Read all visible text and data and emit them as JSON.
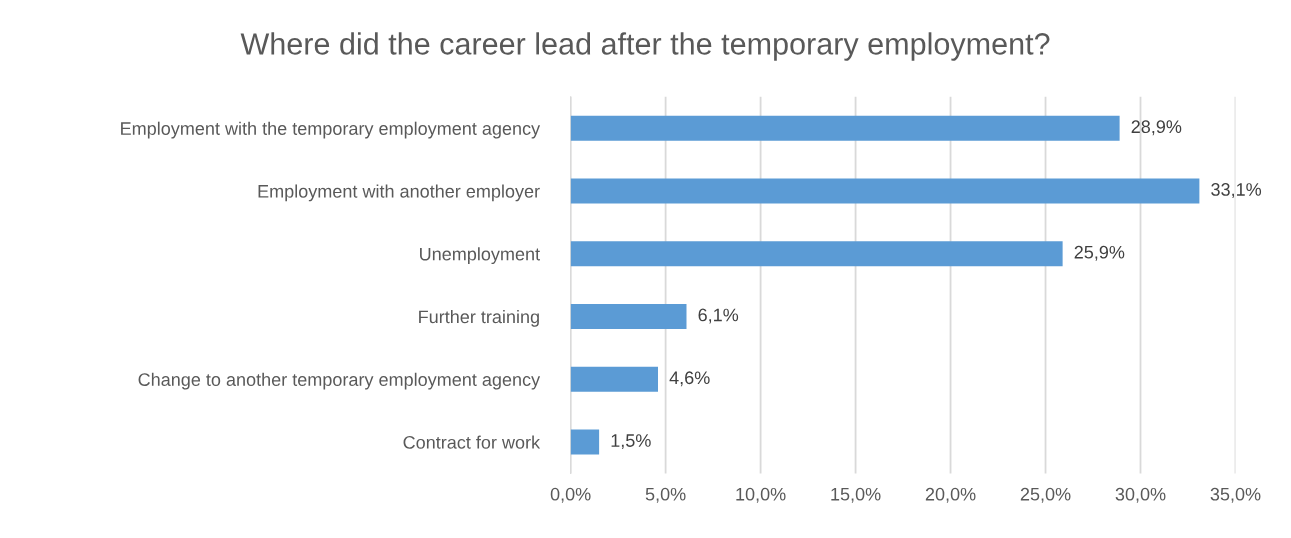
{
  "chart_data": {
    "type": "bar",
    "orientation": "horizontal",
    "title": "Where did the career lead after the temporary employment?",
    "categories": [
      "Employment with the temporary employment agency",
      "Employment with another employer",
      "Unemployment",
      "Further training",
      "Change to another temporary employment agency",
      "Contract for work"
    ],
    "values": [
      28.9,
      33.1,
      25.9,
      6.1,
      4.6,
      1.5
    ],
    "value_labels": [
      "28,9%",
      "33,1%",
      "25,9%",
      "6,1%",
      "4,6%",
      "1,5%"
    ],
    "color": "#5b9bd5",
    "xlim": [
      0,
      35
    ],
    "xticks": [
      {
        "value": 0,
        "label": "0,0%"
      },
      {
        "value": 5,
        "label": "5,0%"
      },
      {
        "value": 10,
        "label": "10,0%"
      },
      {
        "value": 15,
        "label": "15,0%"
      },
      {
        "value": 20,
        "label": "20,0%"
      },
      {
        "value": 25,
        "label": "25,0%"
      },
      {
        "value": 30,
        "label": "30,0%"
      },
      {
        "value": 35,
        "label": "35,0%"
      }
    ],
    "grid": "x"
  }
}
